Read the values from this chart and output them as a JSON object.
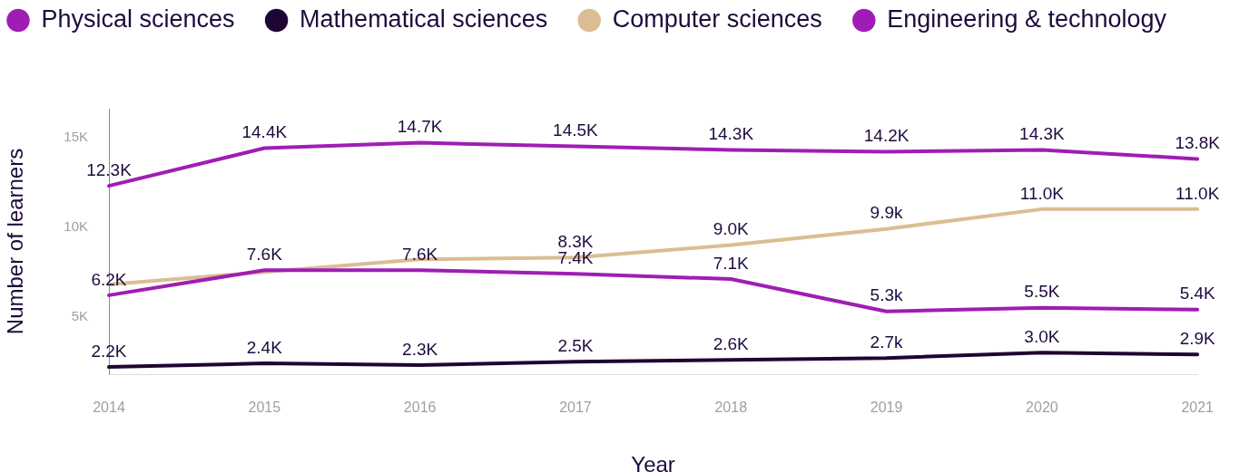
{
  "chart_data": {
    "type": "line",
    "xlabel": "Year",
    "ylabel": "Number of learners",
    "categories": [
      "2014",
      "2015",
      "2016",
      "2017",
      "2018",
      "2019",
      "2020",
      "2021"
    ],
    "series": [
      {
        "name": "Physical sciences",
        "color": "#a01db5",
        "values": [
          6200,
          7600,
          7600,
          7400,
          7100,
          5300,
          5500,
          5400
        ],
        "value_labels": [
          "6.2K",
          "7.6K",
          "7.6K",
          "7.4K",
          "7.1K",
          "5.3k",
          "5.5K",
          "5.4K"
        ]
      },
      {
        "name": "Mathematical sciences",
        "color": "#1e0533",
        "values": [
          2200,
          2400,
          2300,
          2500,
          2600,
          2700,
          3000,
          2900
        ],
        "value_labels": [
          "2.2K",
          "2.4K",
          "2.3K",
          "2.5K",
          "2.6K",
          "2.7k",
          "3.0K",
          "2.9K"
        ]
      },
      {
        "name": "Computer sciences",
        "color": "#dcbd93",
        "values": [
          6800,
          7500,
          8200,
          8300,
          9000,
          9900,
          11000,
          11000
        ],
        "value_labels": [
          null,
          null,
          null,
          "8.3K",
          "9.0K",
          "9.9k",
          "11.0K",
          "11.0K"
        ]
      },
      {
        "name": "Engineering & technology",
        "color": "#a01db5",
        "values": [
          12300,
          14400,
          14700,
          14500,
          14300,
          14200,
          14300,
          13800
        ],
        "value_labels": [
          "12.3K",
          "14.4K",
          "14.7K",
          "14.5K",
          "14.3K",
          "14.2K",
          "14.3K",
          "13.8K"
        ]
      }
    ],
    "ylim": [
      1800,
      16600
    ],
    "yticks": [
      {
        "value": 5000,
        "label": "5K"
      },
      {
        "value": 10000,
        "label": "10K"
      },
      {
        "value": 15000,
        "label": "15K"
      }
    ],
    "grid": false,
    "legend": "top left",
    "marker": "none",
    "line_style": "solid"
  }
}
